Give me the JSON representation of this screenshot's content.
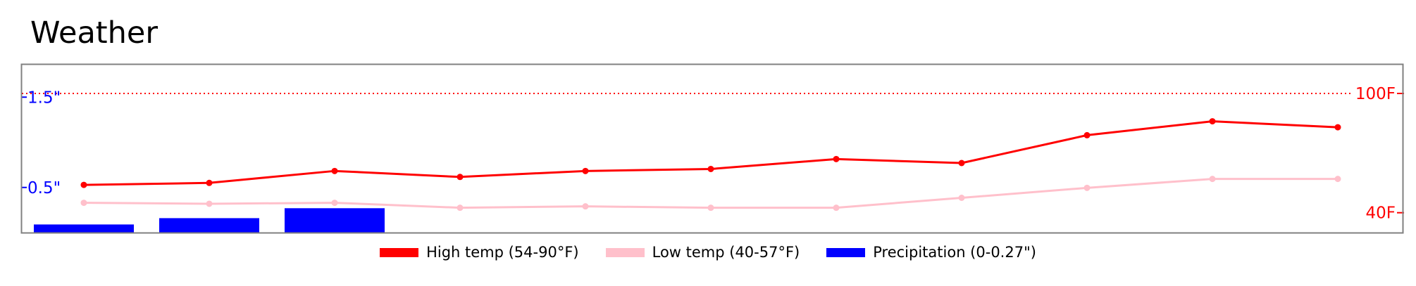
{
  "title": "Weather",
  "colors": {
    "high": "#ff0000",
    "low": "#ffc0cb",
    "precip": "#0000ff",
    "frame": "#808080"
  },
  "legend": [
    {
      "label": "High temp (54-90°F)",
      "color": "#ff0000"
    },
    {
      "label": "Low temp (40-57°F)",
      "color": "#ffc0cb"
    },
    {
      "label": "Precipitation (0-0.27\")",
      "color": "#0000ff"
    }
  ],
  "chart_data": {
    "type": "line",
    "title": "Weather",
    "x": [
      0,
      1,
      2,
      3,
      4,
      5,
      6,
      7,
      8,
      9,
      10
    ],
    "series": [
      {
        "name": "High temp (54-90°F)",
        "axis": "temp",
        "color": "#ff0000",
        "values": [
          54,
          55,
          61,
          58,
          61,
          62,
          67,
          65,
          79,
          86,
          83
        ]
      },
      {
        "name": "Low temp (40-57°F)",
        "axis": "temp",
        "color": "#ffc0cb",
        "values": [
          45,
          44.5,
          45,
          42.5,
          43.2,
          42.5,
          42.5,
          47.5,
          52.5,
          57,
          57
        ]
      },
      {
        "name": "Precipitation (0-0.27\")",
        "axis": "precip",
        "type": "bar",
        "color": "#0000ff",
        "values": [
          0.09,
          0.16,
          0.27,
          0,
          0,
          0,
          0,
          0,
          0,
          0,
          0
        ]
      }
    ],
    "temp_axis": {
      "ylim": [
        30,
        100
      ],
      "side": "right",
      "ticks": [
        {
          "value": 100,
          "label": "100F"
        },
        {
          "value": 40,
          "label": "40F"
        }
      ]
    },
    "precip_axis": {
      "ylim": [
        0,
        1.86
      ],
      "side": "left",
      "ticks": [
        {
          "value": 1.5,
          "label": "1.5\""
        },
        {
          "value": 0.5,
          "label": "0.5\""
        }
      ]
    },
    "reference_line": {
      "axis": "temp",
      "value": 100,
      "style": "dotted"
    },
    "grid": false,
    "legend_position": "bottom"
  }
}
